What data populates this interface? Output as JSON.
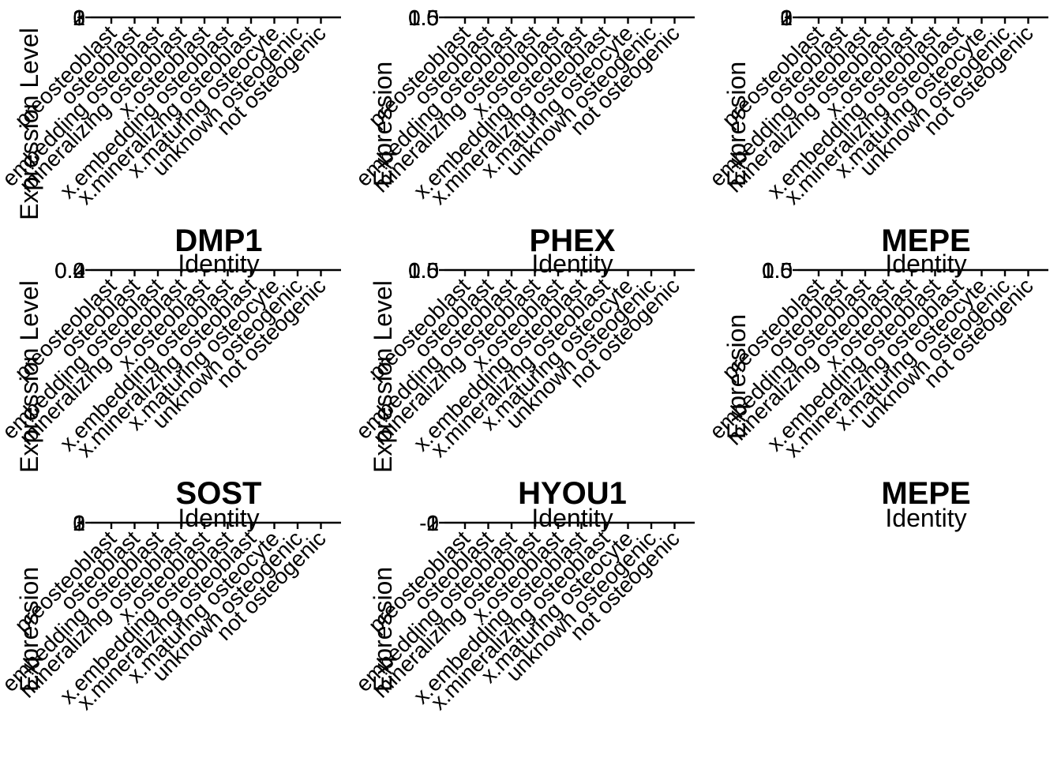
{
  "chart_data": {
    "type": "violin",
    "layout": "facet-grid",
    "categories": [
      "preosteoblast",
      "osteoblast",
      "embedding osteoblast",
      "mineralizing osteoblast",
      "x.osteoblast",
      "x.embedding osteoblast",
      "x.mineralizing osteoblast",
      "x.maturing osteocyte",
      "unknown osteogenic",
      "not osteogenic"
    ],
    "panels": [
      {
        "title": "",
        "xlabel": "",
        "ylabel": "Expression Level",
        "yticks": [
          "0",
          "1",
          "2",
          "3"
        ],
        "xticks_truncated": true,
        "show_axes": true
      },
      {
        "title": "",
        "xlabel": "",
        "ylabel": "Expression",
        "yticks": [
          "0.0",
          "0.5",
          "1.0",
          "1.5"
        ],
        "xticks_truncated": true,
        "show_axes": true
      },
      {
        "title": "",
        "xlabel": "",
        "ylabel": "Expression",
        "yticks": [
          "0",
          "1",
          "2",
          "3"
        ],
        "xticks_truncated": true,
        "show_axes": true
      },
      {
        "title": "DMP1",
        "xlabel": "Identity",
        "ylabel": "Expression Level",
        "yticks": [
          "0.0",
          "0.2",
          "0.4"
        ],
        "xticks_truncated": false,
        "show_axes": true
      },
      {
        "title": "PHEX",
        "xlabel": "Identity",
        "ylabel": "Expression Level",
        "yticks": [
          "0.0",
          "0.5",
          "1.0",
          "1.5"
        ],
        "xticks_truncated": false,
        "show_axes": true
      },
      {
        "title": "MEPE",
        "xlabel": "Identity",
        "ylabel": "Expression",
        "yticks": [
          "0.0",
          "0.5",
          "1.0",
          "1.5"
        ],
        "xticks_truncated": false,
        "show_axes": true
      },
      {
        "title": "SOST",
        "xlabel": "Identity",
        "ylabel": "Expression",
        "yticks": [
          "0",
          "1",
          "2",
          "3"
        ],
        "xticks_truncated": false,
        "show_axes": true
      },
      {
        "title": "HYOU1",
        "xlabel": "Identity",
        "ylabel": "Expression",
        "yticks": [
          "-1",
          "0",
          "1",
          "2"
        ],
        "xticks_truncated": false,
        "show_axes": true
      },
      {
        "title": "MEPE",
        "xlabel": "Identity",
        "ylabel": "",
        "yticks": [],
        "xticks_truncated": false,
        "show_axes": false
      }
    ]
  }
}
